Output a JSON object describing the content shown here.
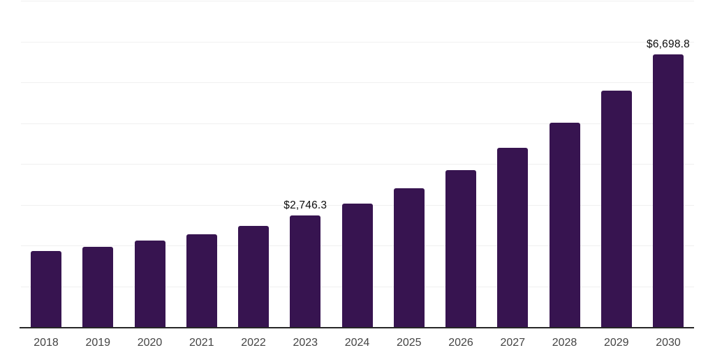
{
  "chart_data": {
    "type": "bar",
    "title": "",
    "xlabel": "",
    "ylabel": "",
    "categories": [
      "2018",
      "2019",
      "2020",
      "2021",
      "2022",
      "2023",
      "2024",
      "2025",
      "2026",
      "2027",
      "2028",
      "2029",
      "2030"
    ],
    "values": [
      1885,
      1985,
      2140,
      2285,
      2495,
      2746.3,
      3045,
      3420,
      3860,
      4410,
      5030,
      5810,
      6698.8
    ],
    "data_labels": [
      "",
      "",
      "",
      "",
      "",
      "$2,746.3",
      "",
      "",
      "",
      "",
      "",
      "",
      "$6,698.8"
    ],
    "ylim": [
      0,
      8000
    ],
    "gridline_step": 1000,
    "grid": true,
    "y_tick_labels_visible": false,
    "legend_position": "none",
    "colors": {
      "bar": "#371450",
      "gridline": "#f0f0f0",
      "axis": "#262626",
      "tick_label": "#444444",
      "data_label": "#0d0d0d",
      "background": "#ffffff"
    }
  }
}
